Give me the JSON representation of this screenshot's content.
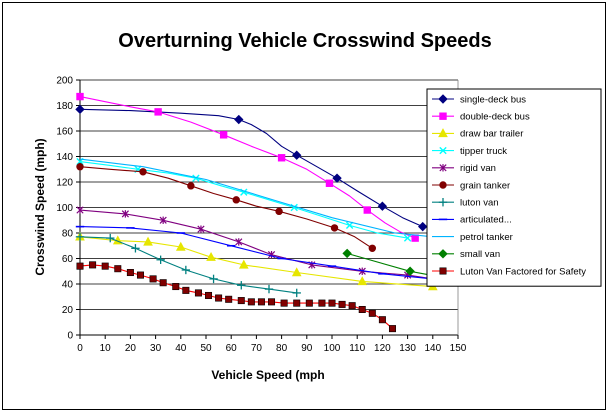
{
  "chart_data": {
    "type": "line",
    "title": "Overturning Vehicle Crosswind Speeds",
    "xlabel": "Vehicle Speed (mph",
    "ylabel": "Crosswind Speed (mph)",
    "xlim": [
      0,
      150
    ],
    "ylim": [
      0,
      200
    ],
    "x_ticks": [
      "0",
      "10",
      "20",
      "30",
      "40",
      "50",
      "60",
      "70",
      "80",
      "90",
      "100",
      "110",
      "120",
      "130",
      "140",
      "150"
    ],
    "y_ticks": [
      "0",
      "20",
      "40",
      "60",
      "80",
      "100",
      "120",
      "140",
      "160",
      "180",
      "200"
    ],
    "grid": "horizontal",
    "legend_position": "right",
    "series": [
      {
        "name": "single-deck bus",
        "color": "#000080",
        "marker": "diamond",
        "points": [
          [
            0,
            177
          ],
          [
            63,
            169
          ],
          [
            86,
            141
          ],
          [
            102,
            123
          ],
          [
            120,
            101
          ],
          [
            136,
            85
          ]
        ],
        "curve": [
          [
            0,
            177
          ],
          [
            20,
            176
          ],
          [
            40,
            174
          ],
          [
            55,
            172
          ],
          [
            63,
            169
          ],
          [
            68,
            165
          ],
          [
            74,
            158
          ],
          [
            80,
            148
          ],
          [
            86,
            141
          ],
          [
            94,
            132
          ],
          [
            102,
            123
          ],
          [
            110,
            113
          ],
          [
            120,
            101
          ],
          [
            128,
            92
          ],
          [
            136,
            85
          ]
        ]
      },
      {
        "name": "double-deck bus",
        "color": "#ff00ff",
        "marker": "square",
        "points": [
          [
            0,
            187
          ],
          [
            31,
            175
          ],
          [
            57,
            157
          ],
          [
            80,
            139
          ],
          [
            99,
            119
          ],
          [
            114,
            98
          ],
          [
            133,
            76
          ]
        ],
        "curve": [
          [
            0,
            187
          ],
          [
            10,
            183
          ],
          [
            20,
            179
          ],
          [
            31,
            175
          ],
          [
            44,
            167
          ],
          [
            57,
            157
          ],
          [
            68,
            148
          ],
          [
            80,
            139
          ],
          [
            90,
            130
          ],
          [
            99,
            119
          ],
          [
            107,
            109
          ],
          [
            114,
            98
          ],
          [
            121,
            88
          ],
          [
            127,
            81
          ],
          [
            133,
            76
          ]
        ]
      },
      {
        "name": "draw bar trailer",
        "color": "#e6e600",
        "marker": "triangle",
        "points": [
          [
            0,
            77
          ],
          [
            15,
            74
          ],
          [
            27,
            73
          ],
          [
            40,
            69
          ],
          [
            52,
            61
          ],
          [
            65,
            55
          ],
          [
            86,
            49
          ],
          [
            112,
            42
          ],
          [
            140,
            38
          ]
        ]
      },
      {
        "name": "tipper truck",
        "color": "#00ffff",
        "marker": "x",
        "points": [
          [
            0,
            136
          ],
          [
            23,
            130
          ],
          [
            46,
            123
          ],
          [
            65,
            112
          ],
          [
            85,
            100
          ],
          [
            107,
            86
          ],
          [
            130,
            76
          ]
        ],
        "curve": [
          [
            0,
            136
          ],
          [
            12,
            133
          ],
          [
            23,
            130
          ],
          [
            35,
            127
          ],
          [
            46,
            123
          ],
          [
            56,
            117
          ],
          [
            65,
            112
          ],
          [
            75,
            106
          ],
          [
            85,
            100
          ],
          [
            96,
            93
          ],
          [
            107,
            86
          ],
          [
            118,
            80
          ],
          [
            130,
            76
          ]
        ]
      },
      {
        "name": "rigid van",
        "color": "#800080",
        "marker": "asterisk",
        "points": [
          [
            0,
            98
          ],
          [
            18,
            95
          ],
          [
            33,
            90
          ],
          [
            48,
            83
          ],
          [
            63,
            73
          ],
          [
            76,
            63
          ],
          [
            92,
            55
          ],
          [
            112,
            50
          ],
          [
            130,
            47
          ],
          [
            150,
            41
          ]
        ]
      },
      {
        "name": "grain tanker",
        "color": "#800000",
        "marker": "circle",
        "points": [
          [
            0,
            132
          ],
          [
            25,
            128
          ],
          [
            44,
            117
          ],
          [
            62,
            106
          ],
          [
            79,
            97
          ],
          [
            101,
            84
          ],
          [
            116,
            68
          ]
        ],
        "curve": [
          [
            0,
            132
          ],
          [
            12,
            130
          ],
          [
            25,
            128
          ],
          [
            35,
            123
          ],
          [
            44,
            117
          ],
          [
            53,
            111
          ],
          [
            62,
            106
          ],
          [
            70,
            101
          ],
          [
            79,
            97
          ],
          [
            90,
            91
          ],
          [
            101,
            84
          ],
          [
            109,
            77
          ],
          [
            116,
            68
          ]
        ]
      },
      {
        "name": "luton van",
        "color": "#008080",
        "marker": "plus",
        "points": [
          [
            0,
            77
          ],
          [
            12,
            76
          ],
          [
            22,
            68
          ],
          [
            32,
            59
          ],
          [
            42,
            51
          ],
          [
            53,
            44
          ],
          [
            64,
            39
          ],
          [
            75,
            36
          ],
          [
            86,
            33
          ]
        ]
      },
      {
        "name": "articulated...",
        "color": "#0000ff",
        "marker": "dash",
        "points": [
          [
            0,
            85
          ],
          [
            20,
            84
          ],
          [
            40,
            80
          ],
          [
            60,
            70
          ],
          [
            80,
            60
          ],
          [
            100,
            54
          ],
          [
            120,
            48
          ],
          [
            140,
            44
          ],
          [
            150,
            42
          ]
        ]
      },
      {
        "name": "petrol tanker",
        "color": "#00b4ff",
        "marker": "none",
        "points": [
          [
            0,
            138
          ],
          [
            25,
            132
          ],
          [
            50,
            122
          ],
          [
            75,
            107
          ],
          [
            100,
            92
          ],
          [
            125,
            80
          ],
          [
            140,
            77
          ]
        ]
      },
      {
        "name": "small van",
        "color": "#008000",
        "marker": "diamond",
        "points": [
          [
            106,
            64
          ],
          [
            131,
            50
          ],
          [
            150,
            43
          ]
        ]
      },
      {
        "name": "Luton Van Factored for Safety",
        "color": "#ff0000",
        "marker": "square-dark",
        "points": [
          [
            0,
            54
          ],
          [
            5,
            55
          ],
          [
            10,
            54
          ],
          [
            15,
            52
          ],
          [
            20,
            49
          ],
          [
            24,
            47
          ],
          [
            29,
            44
          ],
          [
            33,
            41
          ],
          [
            38,
            38
          ],
          [
            42,
            35
          ],
          [
            47,
            33
          ],
          [
            51,
            31
          ],
          [
            55,
            29
          ],
          [
            59,
            28
          ],
          [
            64,
            27
          ],
          [
            68,
            26
          ],
          [
            72,
            26
          ],
          [
            76,
            26
          ],
          [
            81,
            25
          ],
          [
            86,
            25
          ],
          [
            91,
            25
          ],
          [
            96,
            25
          ],
          [
            100,
            25
          ],
          [
            104,
            24
          ],
          [
            108,
            23
          ],
          [
            112,
            20
          ],
          [
            116,
            17
          ],
          [
            120,
            12
          ],
          [
            124,
            5
          ]
        ]
      }
    ]
  }
}
